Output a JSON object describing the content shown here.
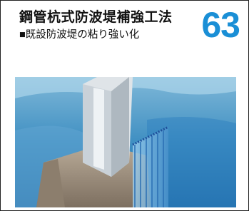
{
  "header": {
    "title": "鋼管杭式防波堤補強工法",
    "subtitle": "■既設防波堤の粘り強い化",
    "number": "63"
  }
}
